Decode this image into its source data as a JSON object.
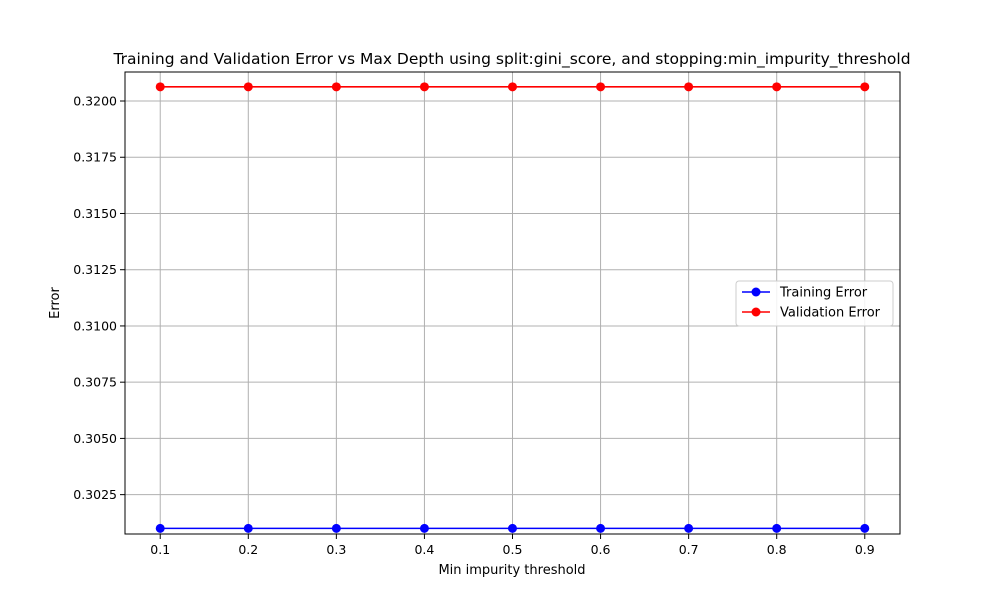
{
  "chart_data": {
    "type": "line",
    "title": "Training and Validation Error vs Max Depth using split:gini_score, and stopping:min_impurity_threshold",
    "xlabel": "Min impurity threshold",
    "ylabel": "Error",
    "x": [
      0.1,
      0.2,
      0.3,
      0.4,
      0.5,
      0.6,
      0.7,
      0.8,
      0.9
    ],
    "series": [
      {
        "name": "Training Error",
        "color": "#0000ff",
        "marker": "circle",
        "values": [
          0.301,
          0.301,
          0.301,
          0.301,
          0.301,
          0.301,
          0.301,
          0.301,
          0.301
        ]
      },
      {
        "name": "Validation Error",
        "color": "#ff0000",
        "marker": "circle",
        "values": [
          0.32063,
          0.32063,
          0.32063,
          0.32063,
          0.32063,
          0.32063,
          0.32063,
          0.32063,
          0.32063
        ]
      }
    ],
    "xlim": [
      0.06,
      0.94
    ],
    "ylim": [
      0.30075,
      0.32129
    ],
    "xticks": [
      0.1,
      0.2,
      0.3,
      0.4,
      0.5,
      0.6,
      0.7,
      0.8,
      0.9
    ],
    "xtick_labels": [
      "0.1",
      "0.2",
      "0.3",
      "0.4",
      "0.5",
      "0.6",
      "0.7",
      "0.8",
      "0.9"
    ],
    "yticks": [
      0.3025,
      0.305,
      0.3075,
      0.31,
      0.3125,
      0.315,
      0.3175,
      0.32
    ],
    "ytick_labels": [
      "0.3025",
      "0.3050",
      "0.3075",
      "0.3100",
      "0.3125",
      "0.3150",
      "0.3175",
      "0.3200"
    ],
    "grid": true,
    "legend_position": "center-right"
  }
}
